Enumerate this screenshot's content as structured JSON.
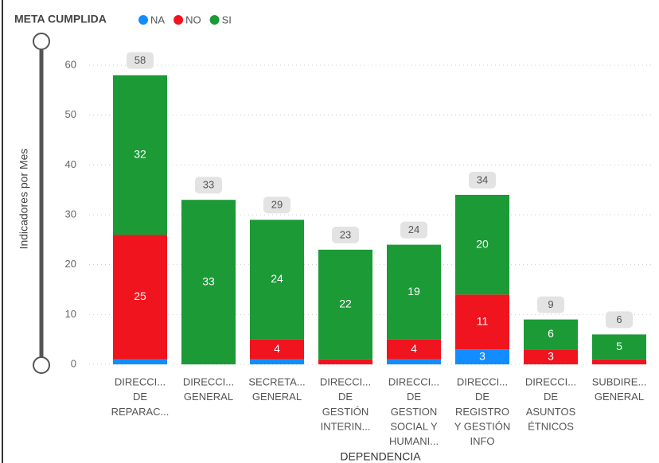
{
  "chart_data": {
    "type": "bar",
    "stacked": true,
    "legend_title": "META CUMPLIDA",
    "y_label": "Indicadores por Mes",
    "x_label": "DEPENDENCIA",
    "categories": [
      [
        "DIRECCI...",
        "DE",
        "REPARAC..."
      ],
      [
        "DIRECCI...",
        "GENERAL"
      ],
      [
        "SECRETA...",
        "GENERAL"
      ],
      [
        "DIRECCI...",
        "DE",
        "GESTIÓN",
        "INTERIN..."
      ],
      [
        "DIRECCI...",
        "DE",
        "GESTION",
        "SOCIAL Y",
        "HUMANI..."
      ],
      [
        "DIRECCI...",
        "DE",
        "REGISTRO",
        "Y GESTIÓN",
        "INFO"
      ],
      [
        "DIRECCI...",
        "DE",
        "ASUNTOS",
        "ÉTNICOS"
      ],
      [
        "SUBDIRE...",
        "GENERAL"
      ]
    ],
    "series": [
      {
        "name": "NA",
        "color": "#118DFF",
        "values": [
          1,
          0,
          1,
          0,
          1,
          3,
          0,
          0
        ]
      },
      {
        "name": "NO",
        "color": "#F0141E",
        "values": [
          25,
          0,
          4,
          1,
          4,
          11,
          3,
          1
        ]
      },
      {
        "name": "SI",
        "color": "#1B9A36",
        "values": [
          32,
          33,
          24,
          22,
          19,
          20,
          6,
          5
        ]
      }
    ],
    "totals": [
      58,
      33,
      29,
      23,
      24,
      34,
      9,
      6
    ],
    "ylim": [
      0,
      60
    ],
    "yticks": [
      0,
      10,
      20,
      30,
      40,
      50,
      60
    ],
    "grid": true
  }
}
